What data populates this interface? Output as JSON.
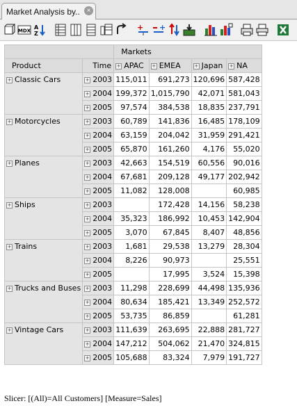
{
  "tab": {
    "title": "Market Analysis by.."
  },
  "toolbar": {
    "buttons": [
      "cube-icon",
      "mdx-icon",
      "sort-icon",
      "table-icon",
      "columns-icon",
      "drill-icon",
      "list-icon",
      "swap-icon",
      "expand-icon",
      "collapse-icon",
      "sort-arrows-icon",
      "grid-icon",
      "bar-chart-icon",
      "chart-settings-icon",
      "print-icon",
      "print-preview-icon",
      "excel-icon"
    ]
  },
  "pivot": {
    "markets_label": "Markets",
    "product_label": "Product",
    "time_label": "Time",
    "columns": [
      "APAC",
      "EMEA",
      "Japan",
      "NA"
    ],
    "rows": [
      {
        "product": "Classic Cars",
        "years": [
          {
            "year": "2003",
            "values": [
              "115,011",
              "691,273",
              "120,696",
              "587,428"
            ]
          },
          {
            "year": "2004",
            "values": [
              "199,372",
              "1,015,790",
              "42,071",
              "581,043"
            ]
          },
          {
            "year": "2005",
            "values": [
              "97,574",
              "384,538",
              "18,835",
              "237,791"
            ]
          }
        ]
      },
      {
        "product": "Motorcycles",
        "years": [
          {
            "year": "2003",
            "values": [
              "60,789",
              "141,836",
              "16,485",
              "178,109"
            ]
          },
          {
            "year": "2004",
            "values": [
              "63,159",
              "204,042",
              "31,959",
              "291,421"
            ]
          },
          {
            "year": "2005",
            "values": [
              "65,870",
              "161,260",
              "4,176",
              "55,020"
            ]
          }
        ]
      },
      {
        "product": "Planes",
        "years": [
          {
            "year": "2003",
            "values": [
              "42,663",
              "154,519",
              "60,556",
              "90,016"
            ]
          },
          {
            "year": "2004",
            "values": [
              "67,681",
              "209,128",
              "49,177",
              "202,942"
            ]
          },
          {
            "year": "2005",
            "values": [
              "11,082",
              "128,008",
              "",
              "60,985"
            ]
          }
        ]
      },
      {
        "product": "Ships",
        "years": [
          {
            "year": "2003",
            "values": [
              "",
              "172,428",
              "14,156",
              "58,238"
            ]
          },
          {
            "year": "2004",
            "values": [
              "35,323",
              "186,992",
              "10,453",
              "142,904"
            ]
          },
          {
            "year": "2005",
            "values": [
              "3,070",
              "67,845",
              "8,407",
              "48,856"
            ]
          }
        ]
      },
      {
        "product": "Trains",
        "years": [
          {
            "year": "2003",
            "values": [
              "1,681",
              "29,538",
              "13,279",
              "28,304"
            ]
          },
          {
            "year": "2004",
            "values": [
              "8,226",
              "90,973",
              "",
              "25,551"
            ]
          },
          {
            "year": "2005",
            "values": [
              "",
              "17,995",
              "3,524",
              "15,398"
            ]
          }
        ]
      },
      {
        "product": "Trucks and Buses",
        "years": [
          {
            "year": "2003",
            "values": [
              "11,298",
              "228,699",
              "44,498",
              "135,936"
            ]
          },
          {
            "year": "2004",
            "values": [
              "80,634",
              "185,421",
              "13,349",
              "252,572"
            ]
          },
          {
            "year": "2005",
            "values": [
              "53,735",
              "86,859",
              "",
              "61,281"
            ]
          }
        ]
      },
      {
        "product": "Vintage Cars",
        "years": [
          {
            "year": "2003",
            "values": [
              "111,639",
              "263,695",
              "22,888",
              "281,727"
            ]
          },
          {
            "year": "2004",
            "values": [
              "147,212",
              "504,062",
              "21,470",
              "324,815"
            ]
          },
          {
            "year": "2005",
            "values": [
              "105,688",
              "83,324",
              "7,979",
              "191,727"
            ]
          }
        ]
      }
    ]
  },
  "slicer": "Slicer: [(All)=All Customers] [Measure=Sales]"
}
